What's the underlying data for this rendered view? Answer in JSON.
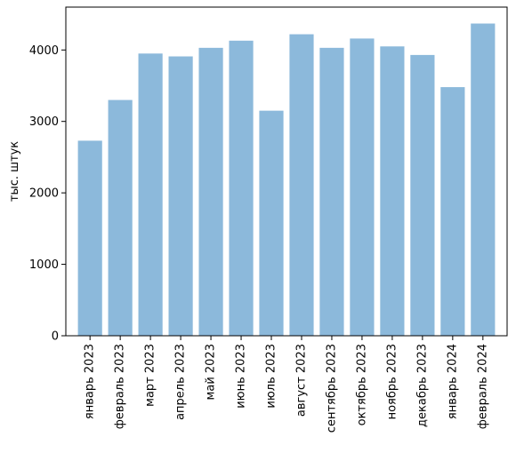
{
  "chart_data": {
    "type": "bar",
    "categories": [
      "январь 2023",
      "февраль 2023",
      "март 2023",
      "апрель 2023",
      "май 2023",
      "июнь 2023",
      "июль 2023",
      "август 2023",
      "сентябрь 2023",
      "октябрь 2023",
      "ноябрь 2023",
      "декабрь 2023",
      "январь 2024",
      "февраль 2024"
    ],
    "values": [
      2730,
      3300,
      3950,
      3910,
      4030,
      4130,
      3150,
      4220,
      4030,
      4160,
      4050,
      3930,
      3480,
      4370
    ],
    "title": "",
    "xlabel": "",
    "ylabel": "тыс. штук",
    "ylim": [
      0,
      4600
    ],
    "yticks": [
      0,
      1000,
      2000,
      3000,
      4000
    ],
    "ytick_labels": [
      "0",
      "1000",
      "2000",
      "3000",
      "4000"
    ],
    "bar_color": "#8cb9db",
    "grid": false,
    "legend": "none"
  }
}
